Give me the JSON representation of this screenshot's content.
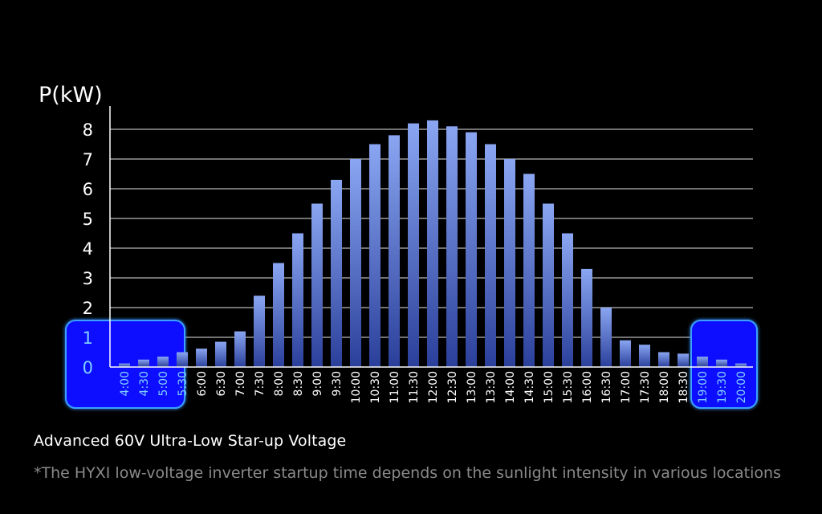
{
  "chart_data": {
    "type": "bar",
    "ylabel": "P(kW)",
    "ylim": [
      0,
      8.8
    ],
    "yticks": [
      0,
      1,
      2,
      3,
      4,
      5,
      6,
      7,
      8
    ],
    "grid": true,
    "categories": [
      "4:00",
      "4:30",
      "5:00",
      "5:30",
      "6:00",
      "6:30",
      "7:00",
      "7:30",
      "8:00",
      "8:30",
      "9:00",
      "9:30",
      "10:00",
      "10:30",
      "11:00",
      "11:30",
      "12:00",
      "12:30",
      "13:00",
      "13:30",
      "14:00",
      "14:30",
      "15:00",
      "15:30",
      "16:00",
      "16:30",
      "17:00",
      "17:30",
      "18:00",
      "18:30",
      "19:00",
      "19:30",
      "20:00"
    ],
    "values": [
      0.12,
      0.25,
      0.35,
      0.5,
      0.62,
      0.85,
      1.2,
      2.4,
      3.5,
      4.5,
      5.5,
      6.3,
      7.0,
      7.5,
      7.8,
      8.2,
      8.3,
      8.1,
      7.9,
      7.5,
      7.0,
      6.5,
      5.5,
      4.5,
      3.3,
      2.0,
      0.9,
      0.75,
      0.5,
      0.45,
      0.35,
      0.25,
      0.12
    ],
    "highlights": [
      {
        "name": "morning-low-voltage",
        "from": 0,
        "to": 3,
        "color": "#0a0aff"
      },
      {
        "name": "evening-low-voltage",
        "from": 30,
        "to": 32,
        "color": "#0a0aff"
      }
    ]
  },
  "colors": {
    "bar_top": "#8aa6f2",
    "bar_bottom": "#2a3f9a",
    "grid": "#ffffff",
    "highlight_border": "#3aa0ff"
  },
  "caption": "Advanced 60V Ultra-Low Star-up Voltage",
  "footnote": "*The HYXI low-voltage inverter startup time depends on the sunlight intensity in various locations"
}
